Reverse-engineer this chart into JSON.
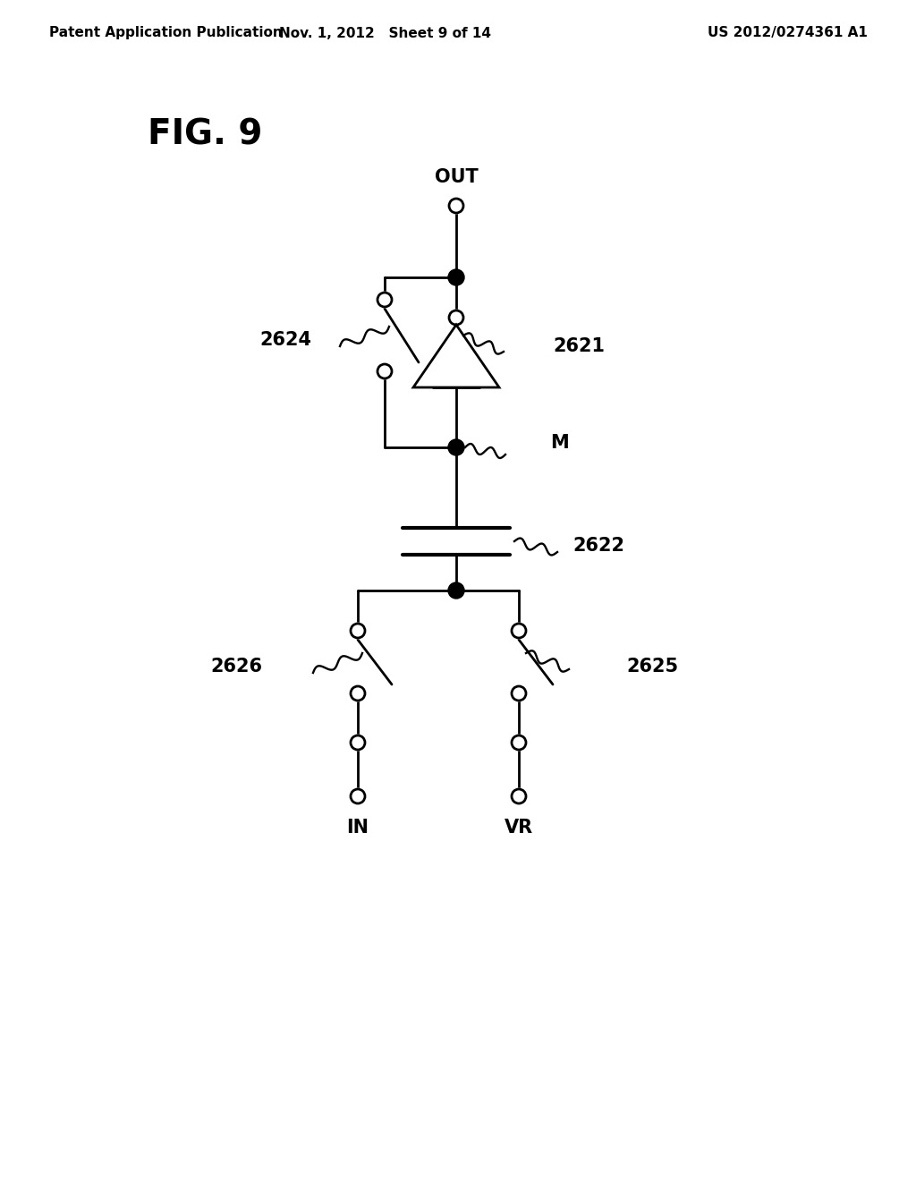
{
  "header_left": "Patent Application Publication",
  "header_mid": "Nov. 1, 2012   Sheet 9 of 14",
  "header_right": "US 2012/0274361 A1",
  "background_color": "#ffffff",
  "line_color": "#000000",
  "fig_label": "FIG. 9",
  "lw": 2.0
}
